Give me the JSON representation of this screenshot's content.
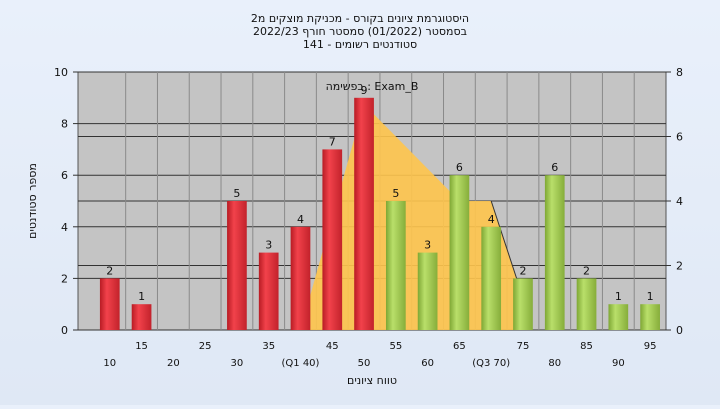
{
  "chart_data": {
    "type": "bar",
    "title_lines": [
      "היסטוגרמת ציונים בקורס - מכניקת מוצקים מ2",
      "בסמסטר  (01/2022)  סמסטר חורף 2022/23",
      "סטודנטים רשומים - 141"
    ],
    "annotation": "בפשימה : Exam_B",
    "xlabel": "טווח ציונים",
    "ylabel": "מספר סטודנטים",
    "ylim": [
      0,
      10
    ],
    "y_ticks": [
      "0",
      "2",
      "4",
      "6",
      "8",
      "10"
    ],
    "y2lim": [
      0,
      8
    ],
    "y2_ticks": [
      "0",
      "2",
      "4",
      "6",
      "8"
    ],
    "grid": true,
    "x_labels_upper": [
      "15",
      "25",
      "35",
      "45",
      "55",
      "65",
      "75",
      "85",
      "95"
    ],
    "x_labels_lower": [
      "10",
      "20",
      "30",
      "(Q1 40)",
      "50",
      "60",
      "(Q3 70)",
      "80",
      "90"
    ],
    "categories": [
      10,
      15,
      20,
      25,
      30,
      35,
      40,
      45,
      50,
      55,
      60,
      65,
      70,
      75,
      80,
      85,
      90,
      95
    ],
    "values": [
      2,
      1,
      0,
      0,
      5,
      3,
      4,
      7,
      9,
      5,
      3,
      6,
      4,
      2,
      6,
      2,
      1,
      1
    ],
    "bar_groups": [
      "red",
      "red",
      "red",
      "red",
      "red",
      "red",
      "red",
      "red",
      "red",
      "green",
      "green",
      "green",
      "green",
      "green",
      "green",
      "green",
      "green",
      "green"
    ],
    "overlay": {
      "type": "area",
      "x": [
        40,
        50,
        65,
        70,
        75
      ],
      "y": [
        0,
        7,
        4,
        4,
        1
      ]
    },
    "colors": {
      "red": "#e8303a",
      "green": "#9fcc4c",
      "area": "#ffc54d",
      "plot_background": "#c4c4c4"
    }
  }
}
